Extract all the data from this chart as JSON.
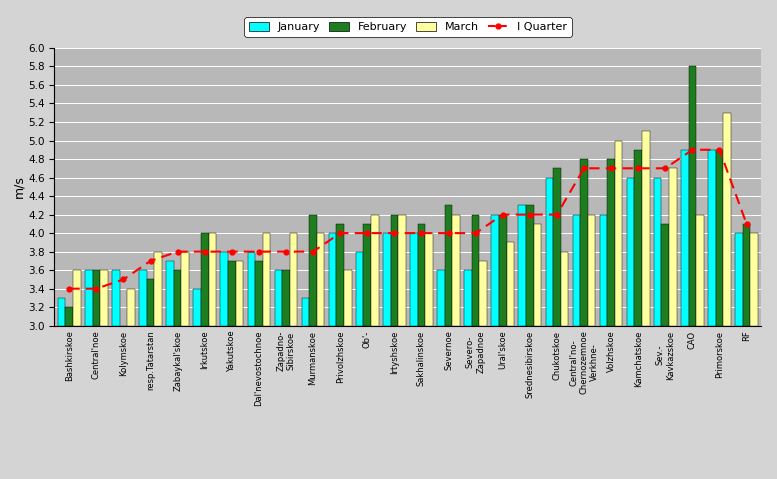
{
  "categories": [
    "Bashkirskoe",
    "Central'noe",
    "Kolymskoe",
    "resp.Tatarstan",
    "Zabaykal'skoe",
    "Irkutskoe",
    "Yakutskoe",
    "Dal'nevostochnoe",
    "Zapadno-\nSibirskoe",
    "Murmanskoe",
    "Privolzhskoe",
    "Ob'-",
    "Irtyshskoe",
    "Sakhalinskoe",
    "Severnoe",
    "Severo-\nZapadnoe",
    "Ural'skoe",
    "Srednesibirskoe",
    "Chukotskoe",
    "Central'no-\nChernozemnoe\nVerkhne-",
    "Volzhskoe",
    "Kamchatskoe",
    "Sev.-\nKavkazskoe",
    "CAO",
    "Primorskoe",
    "RF"
  ],
  "january": [
    3.3,
    3.6,
    3.6,
    3.6,
    3.7,
    3.4,
    3.8,
    3.8,
    3.6,
    3.3,
    4.0,
    3.8,
    4.0,
    4.0,
    3.6,
    3.6,
    4.2,
    4.3,
    4.6,
    4.2,
    4.2,
    4.6,
    4.6,
    4.9,
    4.9,
    4.0
  ],
  "february": [
    3.2,
    3.6,
    3.0,
    3.5,
    3.6,
    4.0,
    3.7,
    3.7,
    3.6,
    4.2,
    4.1,
    4.1,
    4.2,
    4.1,
    4.3,
    4.2,
    4.2,
    4.3,
    4.7,
    4.8,
    4.8,
    4.9,
    4.1,
    5.8,
    4.9,
    4.1
  ],
  "march": [
    3.6,
    3.6,
    3.4,
    3.8,
    3.8,
    4.0,
    3.7,
    4.0,
    4.0,
    4.0,
    3.6,
    4.2,
    4.2,
    4.0,
    4.2,
    3.7,
    3.9,
    4.1,
    3.8,
    4.2,
    5.0,
    5.1,
    4.7,
    4.2,
    5.3,
    4.0
  ],
  "quarter": [
    3.4,
    3.4,
    3.5,
    3.7,
    3.8,
    3.8,
    3.8,
    3.8,
    3.8,
    3.8,
    4.0,
    4.0,
    4.0,
    4.0,
    4.0,
    4.0,
    4.2,
    4.2,
    4.2,
    4.7,
    4.7,
    4.7,
    4.7,
    4.9,
    4.9,
    4.1
  ],
  "bar_width": 0.28,
  "ybase": 3.0,
  "colors": {
    "january": "#00FFFF",
    "february": "#1E7D1E",
    "march": "#FFFFA0",
    "quarter_line": "#FF0000"
  },
  "ylim": [
    3.0,
    6.0
  ],
  "yticks": [
    3.0,
    3.2,
    3.4,
    3.6,
    3.8,
    4.0,
    4.2,
    4.4,
    4.6,
    4.8,
    5.0,
    5.2,
    5.4,
    5.6,
    5.8,
    6.0
  ],
  "ylabel": "m/s",
  "axes_facecolor": "#B8B8B8",
  "fig_facecolor": "#D4D4D4"
}
